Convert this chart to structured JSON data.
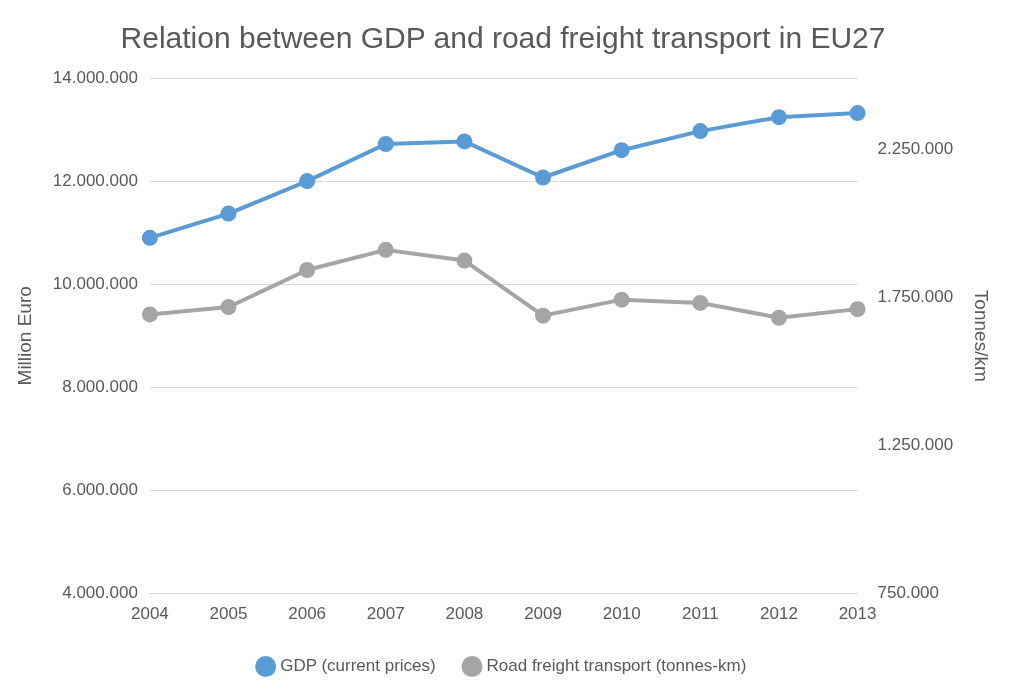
{
  "chart_data": {
    "type": "line",
    "title": "Relation between GDP and road freight transport in EU27",
    "ylabel": "Million Euro",
    "y2label": "Tonnes/km",
    "categories": [
      "2004",
      "2005",
      "2006",
      "2007",
      "2008",
      "2009",
      "2010",
      "2011",
      "2012",
      "2013"
    ],
    "series": [
      {
        "name": "GDP (current prices)",
        "color": "#5b9bd5",
        "values": [
          10900000,
          11370000,
          12000000,
          12720000,
          12770000,
          12070000,
          12600000,
          12970000,
          13240000,
          13320000
        ]
      },
      {
        "name": "Road freight transport (tonnes-km)",
        "color": "#a5a5a5",
        "axis": "y2",
        "values": [
          1692000,
          1717000,
          1842000,
          1910000,
          1874000,
          1688000,
          1742000,
          1731000,
          1681000,
          1710000
        ]
      }
    ],
    "ylim": [
      4000000,
      14000000
    ],
    "yticks": [
      {
        "value": 4000000,
        "label": "4.000.000"
      },
      {
        "value": 6000000,
        "label": "6.000.000"
      },
      {
        "value": 8000000,
        "label": "8.000.000"
      },
      {
        "value": 10000000,
        "label": "10.000.000"
      },
      {
        "value": 12000000,
        "label": "12.000.000"
      },
      {
        "value": 14000000,
        "label": "14.000.000"
      }
    ],
    "y2lim": [
      750000,
      2490000
    ],
    "y2ticks": [
      {
        "value": 750000,
        "label": "750.000"
      },
      {
        "value": 1250000,
        "label": "1.250.000"
      },
      {
        "value": 1750000,
        "label": "1.750.000"
      },
      {
        "value": 2250000,
        "label": "2.250.000"
      }
    ],
    "grid": "y",
    "legend": "bottom",
    "marker": "circle",
    "line_style": "solid"
  }
}
